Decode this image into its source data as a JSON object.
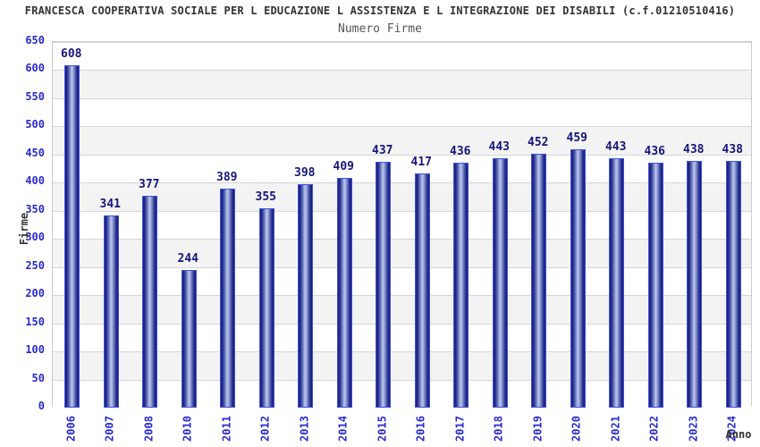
{
  "header": {
    "title": "FRANCESCA COOPERATIVA SOCIALE PER L EDUCAZIONE L ASSISTENZA E L INTEGRAZIONE DEI DISABILI (c.f.01210510416)"
  },
  "chart_data": {
    "type": "bar",
    "title": "Numero Firme",
    "xlabel": "Anno",
    "ylabel": "Firme",
    "categories": [
      "2006",
      "2007",
      "2008",
      "2010",
      "2011",
      "2012",
      "2013",
      "2014",
      "2015",
      "2016",
      "2017",
      "2018",
      "2019",
      "2020",
      "2021",
      "2022",
      "2023",
      "2024"
    ],
    "values": [
      608,
      341,
      377,
      244,
      389,
      355,
      398,
      409,
      437,
      417,
      436,
      443,
      452,
      459,
      443,
      436,
      438,
      438
    ],
    "ylim": [
      0,
      650
    ],
    "ytick_step": 50,
    "grid": true,
    "legend": "none",
    "colors": {
      "title_text": "#333333",
      "subtitle_text": "#555555",
      "axis_tick_text": "#2929cc",
      "value_label_text": "#15157b",
      "axis_title_text": "#333333",
      "gridline": "#d6d6d6",
      "band_gray": "#f3f3f3",
      "band_white": "#ffffff",
      "plot_border": "#cbcbcb",
      "bar_border": "#3c55dd",
      "bar_edge": "#1a1a78",
      "bar_mid": "#2a3392",
      "bar_light": "#7a89c6",
      "bar_highlight": "#b5bfea"
    }
  }
}
